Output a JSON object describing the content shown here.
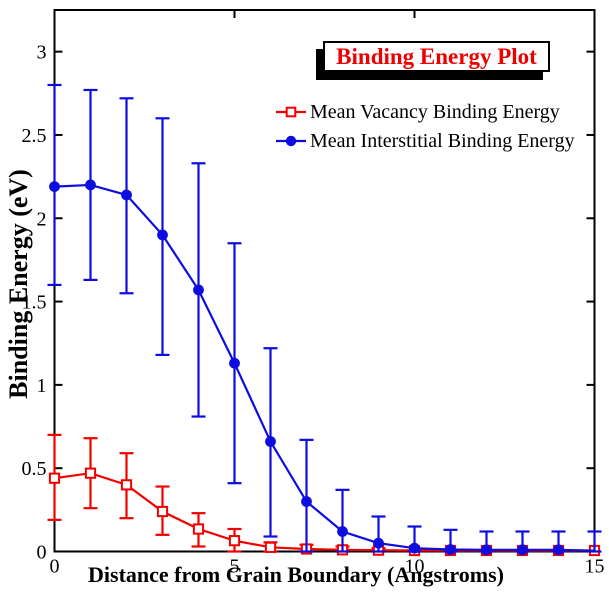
{
  "title": {
    "text": "Binding Energy Plot",
    "color": "#ee0000"
  },
  "axes": {
    "xlabel": "Distance from Grain Boundary (Angstroms)",
    "ylabel": "Binding Energy (eV)",
    "x_tick_labels": [
      "0",
      "5",
      "10",
      "15"
    ],
    "x_ticks": [
      0,
      5,
      10,
      15
    ],
    "y_tick_labels": [
      "0",
      "0.5",
      "1",
      "1.5",
      "2",
      "2.5",
      "3"
    ],
    "y_ticks": [
      0,
      0.5,
      1,
      1.5,
      2,
      2.5,
      3
    ],
    "frame_color": "#000000",
    "tick_label_color": "#000000"
  },
  "legend": {
    "items": [
      {
        "series": "vacancy",
        "label": "Mean Vacancy Binding Energy"
      },
      {
        "series": "interstitial",
        "label": "Mean Interstitial Binding Energy"
      }
    ]
  },
  "chart_data": {
    "type": "line",
    "title": "Binding Energy Plot",
    "xlabel": "Distance from Grain Boundary (Angstroms)",
    "ylabel": "Binding Energy (eV)",
    "xlim": [
      0,
      15
    ],
    "ylim": [
      0,
      3.25
    ],
    "grid": false,
    "legend_position": "upper right, no box",
    "x": [
      0,
      1,
      2,
      3,
      4,
      5,
      6,
      7,
      8,
      9,
      10,
      11,
      12,
      13,
      14,
      15
    ],
    "series": [
      {
        "name": "Mean Vacancy Binding Energy",
        "key": "vacancy",
        "color": "#f20000",
        "marker": "open-square",
        "values": [
          0.44,
          0.47,
          0.4,
          0.24,
          0.135,
          0.065,
          0.025,
          0.015,
          0.01,
          0.008,
          0.006,
          0.006,
          0.006,
          0.006,
          0.006,
          0.006
        ],
        "err_lo": [
          0.19,
          0.26,
          0.2,
          0.1,
          0.03,
          0.0,
          0.0,
          0.0,
          0.0,
          0.0,
          0.006,
          0.006,
          0.006,
          0.006,
          0.006,
          0.006
        ],
        "err_hi": [
          0.7,
          0.68,
          0.59,
          0.39,
          0.23,
          0.135,
          0.055,
          0.04,
          0.03,
          0.02,
          0.006,
          0.006,
          0.006,
          0.006,
          0.006,
          0.006
        ],
        "hide_last_marker": false
      },
      {
        "name": "Mean Interstitial Binding Energy",
        "key": "interstitial",
        "color": "#0d0de0",
        "marker": "filled-circle",
        "values": [
          2.19,
          2.2,
          2.14,
          1.9,
          1.57,
          1.13,
          0.66,
          0.3,
          0.12,
          0.05,
          0.02,
          0.012,
          0.01,
          0.01,
          0.01,
          0.005
        ],
        "err_lo": [
          1.6,
          1.63,
          1.55,
          1.18,
          0.81,
          0.41,
          0.09,
          0.0,
          0.0,
          0.0,
          0.0,
          0.0,
          0.0,
          0.0,
          0.0,
          0.0
        ],
        "err_hi": [
          2.8,
          2.77,
          2.72,
          2.6,
          2.33,
          1.85,
          1.22,
          0.67,
          0.37,
          0.21,
          0.15,
          0.13,
          0.12,
          0.12,
          0.12,
          0.12
        ],
        "hide_last_marker": true
      }
    ]
  }
}
